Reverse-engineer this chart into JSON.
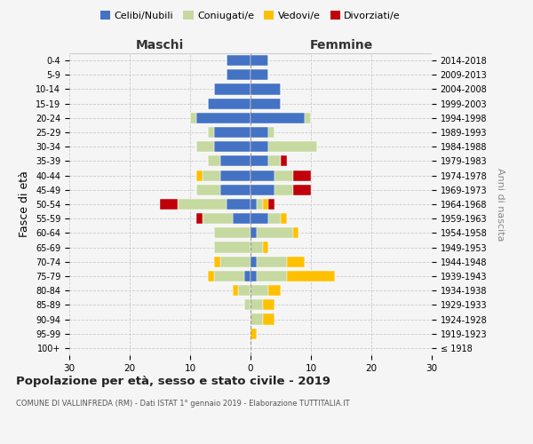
{
  "age_groups": [
    "100+",
    "95-99",
    "90-94",
    "85-89",
    "80-84",
    "75-79",
    "70-74",
    "65-69",
    "60-64",
    "55-59",
    "50-54",
    "45-49",
    "40-44",
    "35-39",
    "30-34",
    "25-29",
    "20-24",
    "15-19",
    "10-14",
    "5-9",
    "0-4"
  ],
  "birth_years": [
    "≤ 1918",
    "1919-1923",
    "1924-1928",
    "1929-1933",
    "1934-1938",
    "1939-1943",
    "1944-1948",
    "1949-1953",
    "1954-1958",
    "1959-1963",
    "1964-1968",
    "1969-1973",
    "1974-1978",
    "1979-1983",
    "1984-1988",
    "1989-1993",
    "1994-1998",
    "1999-2003",
    "2004-2008",
    "2009-2013",
    "2014-2018"
  ],
  "males": {
    "celibi": [
      0,
      0,
      0,
      0,
      0,
      1,
      0,
      0,
      0,
      3,
      4,
      5,
      5,
      5,
      6,
      6,
      9,
      7,
      6,
      4,
      4
    ],
    "coniugati": [
      0,
      0,
      0,
      1,
      2,
      5,
      5,
      6,
      6,
      5,
      8,
      4,
      3,
      2,
      3,
      1,
      1,
      0,
      0,
      0,
      0
    ],
    "vedovi": [
      0,
      0,
      0,
      0,
      1,
      1,
      1,
      0,
      0,
      0,
      0,
      0,
      1,
      0,
      0,
      0,
      0,
      0,
      0,
      0,
      0
    ],
    "divorziati": [
      0,
      0,
      0,
      0,
      0,
      0,
      0,
      0,
      0,
      1,
      3,
      0,
      0,
      0,
      0,
      0,
      0,
      0,
      0,
      0,
      0
    ]
  },
  "females": {
    "nubili": [
      0,
      0,
      0,
      0,
      0,
      1,
      1,
      0,
      1,
      3,
      1,
      4,
      4,
      3,
      3,
      3,
      9,
      5,
      5,
      3,
      3
    ],
    "coniugate": [
      0,
      0,
      2,
      2,
      3,
      5,
      5,
      2,
      6,
      2,
      1,
      3,
      3,
      2,
      8,
      1,
      1,
      0,
      0,
      0,
      0
    ],
    "vedove": [
      0,
      1,
      2,
      2,
      2,
      8,
      3,
      1,
      1,
      1,
      1,
      0,
      0,
      0,
      0,
      0,
      0,
      0,
      0,
      0,
      0
    ],
    "divorziate": [
      0,
      0,
      0,
      0,
      0,
      0,
      0,
      0,
      0,
      0,
      1,
      3,
      3,
      1,
      0,
      0,
      0,
      0,
      0,
      0,
      0
    ]
  },
  "colors": {
    "celibi": "#4472c4",
    "coniugati": "#c5d9a0",
    "vedovi": "#ffc000",
    "divorziati": "#c0000b"
  },
  "xlim": 30,
  "title": "Popolazione per età, sesso e stato civile - 2019",
  "subtitle": "COMUNE DI VALLINFREDA (RM) - Dati ISTAT 1° gennaio 2019 - Elaborazione TUTTITALIA.IT",
  "ylabel_left": "Fasce di età",
  "ylabel_right": "Anni di nascita",
  "xlabel_males": "Maschi",
  "xlabel_females": "Femmine",
  "legend_labels": [
    "Celibi/Nubili",
    "Coniugati/e",
    "Vedovi/e",
    "Divorziati/e"
  ],
  "bg_color": "#f5f5f5",
  "grid_color": "#cccccc"
}
